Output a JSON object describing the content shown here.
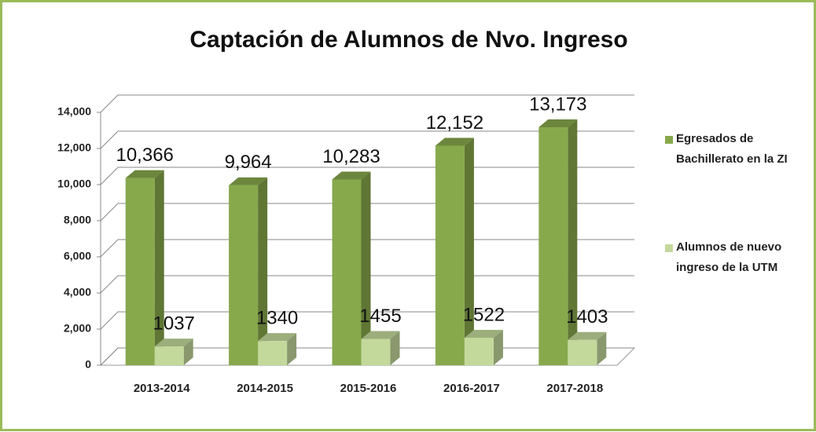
{
  "chart_data": {
    "type": "bar3d",
    "title": "Captación de Alumnos de Nvo. Ingreso",
    "categories": [
      "2013-2014",
      "2014-2015",
      "2015-2016",
      "2016-2017",
      "2017-2018"
    ],
    "series": [
      {
        "name": "Egresados de Bachillerato en la ZI",
        "color": "#87a94c",
        "values": [
          10366,
          9964,
          10283,
          12152,
          13173
        ],
        "value_labels": [
          "10,366",
          "9,964",
          "10,283",
          "12,152",
          "13,173"
        ]
      },
      {
        "name": "Alumnos de  nuevo ingreso de la UTM",
        "color": "#c3d99b",
        "values": [
          1037,
          1340,
          1455,
          1522,
          1403
        ]
      }
    ],
    "ylim": [
      0,
      14000
    ],
    "yticks": [
      0,
      {
        "value": 2000,
        "label": "2,000"
      },
      {
        "value": 4000,
        "label": "4,000"
      },
      {
        "value": 6000,
        "label": "6,000"
      },
      {
        "value": 8000,
        "label": "8,000"
      },
      {
        "value": 10000,
        "label": "10,000"
      },
      {
        "value": 12000,
        "label": "12,000"
      },
      {
        "value": 14000,
        "label": "14,000"
      }
    ],
    "grid": true,
    "legend": "right"
  }
}
